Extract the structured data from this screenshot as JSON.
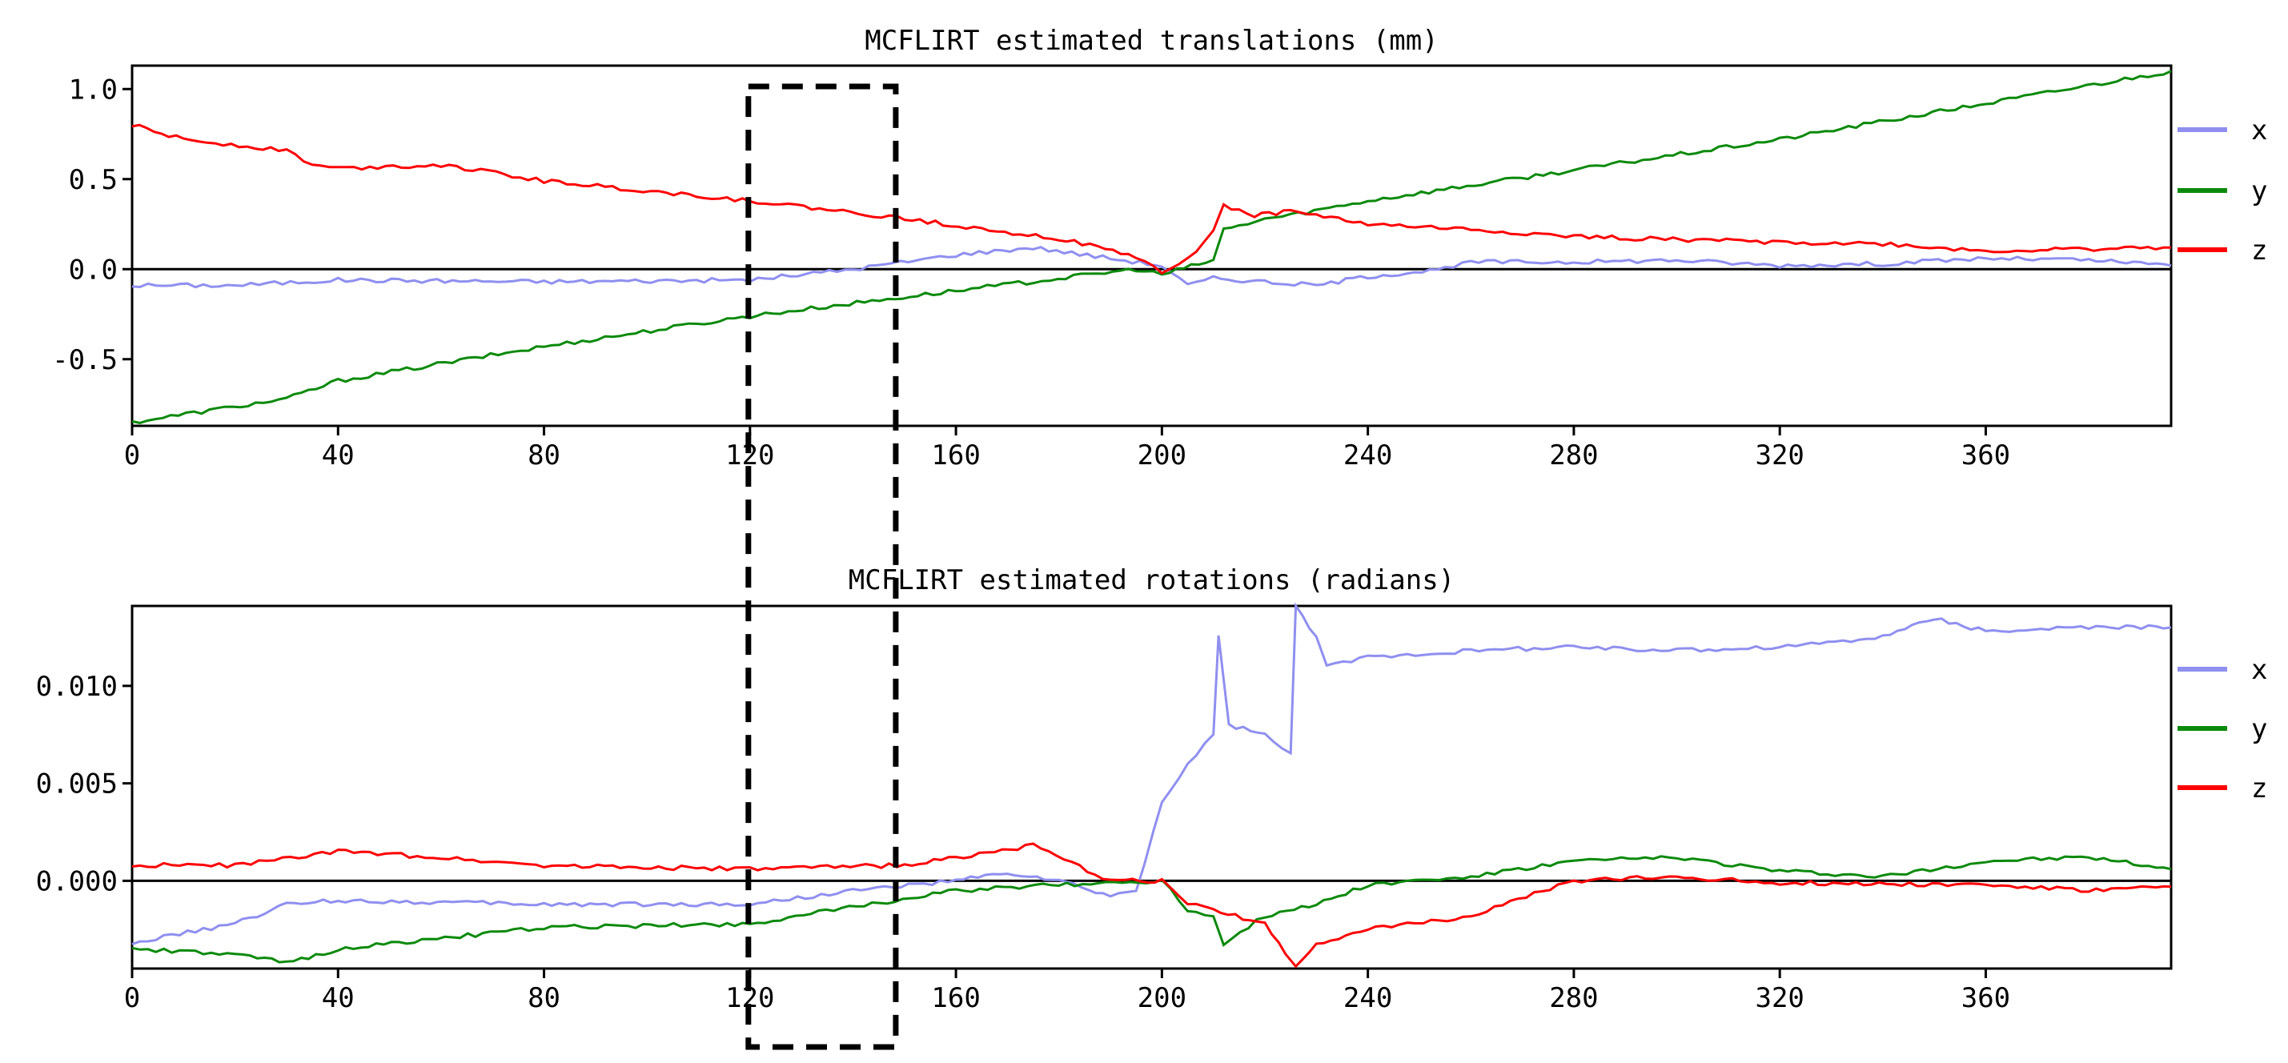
{
  "chart_data": [
    {
      "type": "line",
      "title": "MCFLIRT estimated translations (mm)",
      "xlabel": "",
      "ylabel": "",
      "xlim": [
        0,
        396
      ],
      "ylim": [
        -0.87,
        1.13
      ],
      "x_ticks": [
        0,
        40,
        80,
        120,
        160,
        200,
        240,
        280,
        320,
        360
      ],
      "y_ticks": [
        -0.5,
        0.0,
        0.5,
        1.0
      ],
      "y_tick_labels": [
        "-0.5",
        "0.0",
        "0.5",
        "1.0"
      ],
      "legend_position": "right",
      "series": [
        {
          "name": "x",
          "color": "#8f8ff0",
          "points": [
            [
              0,
              -0.09
            ],
            [
              20,
              -0.09
            ],
            [
              40,
              -0.06
            ],
            [
              80,
              -0.07
            ],
            [
              120,
              -0.06
            ],
            [
              140,
              0.0
            ],
            [
              160,
              0.08
            ],
            [
              175,
              0.12
            ],
            [
              190,
              0.06
            ],
            [
              200,
              0.02
            ],
            [
              205,
              -0.09
            ],
            [
              210,
              -0.05
            ],
            [
              220,
              -0.07
            ],
            [
              230,
              -0.09
            ],
            [
              240,
              -0.04
            ],
            [
              255,
              0.0
            ],
            [
              260,
              0.04
            ],
            [
              280,
              0.04
            ],
            [
              300,
              0.05
            ],
            [
              320,
              0.02
            ],
            [
              340,
              0.03
            ],
            [
              360,
              0.06
            ],
            [
              380,
              0.05
            ],
            [
              396,
              0.02
            ]
          ]
        },
        {
          "name": "y",
          "color": "#0b8a0b",
          "points": [
            [
              0,
              -0.85
            ],
            [
              30,
              -0.72
            ],
            [
              40,
              -0.62
            ],
            [
              80,
              -0.43
            ],
            [
              120,
              -0.26
            ],
            [
              160,
              -0.12
            ],
            [
              195,
              0.0
            ],
            [
              200,
              -0.03
            ],
            [
              210,
              0.05
            ],
            [
              212,
              0.22
            ],
            [
              215,
              0.24
            ],
            [
              220,
              0.28
            ],
            [
              225,
              0.3
            ],
            [
              240,
              0.38
            ],
            [
              280,
              0.55
            ],
            [
              320,
              0.72
            ],
            [
              360,
              0.92
            ],
            [
              396,
              1.1
            ]
          ]
        },
        {
          "name": "z",
          "color": "#ff0000",
          "points": [
            [
              0,
              0.8
            ],
            [
              10,
              0.72
            ],
            [
              30,
              0.66
            ],
            [
              35,
              0.58
            ],
            [
              40,
              0.56
            ],
            [
              60,
              0.58
            ],
            [
              80,
              0.49
            ],
            [
              120,
              0.38
            ],
            [
              150,
              0.28
            ],
            [
              180,
              0.17
            ],
            [
              195,
              0.07
            ],
            [
              200,
              -0.02
            ],
            [
              205,
              0.05
            ],
            [
              210,
              0.22
            ],
            [
              212,
              0.35
            ],
            [
              218,
              0.3
            ],
            [
              225,
              0.32
            ],
            [
              230,
              0.3
            ],
            [
              240,
              0.25
            ],
            [
              260,
              0.22
            ],
            [
              280,
              0.18
            ],
            [
              320,
              0.15
            ],
            [
              340,
              0.14
            ],
            [
              360,
              0.1
            ],
            [
              396,
              0.12
            ]
          ]
        }
      ]
    },
    {
      "type": "line",
      "title": "MCFLIRT estimated rotations (radians)",
      "xlabel": "",
      "ylabel": "",
      "xlim": [
        0,
        396
      ],
      "ylim": [
        -0.0045,
        0.0141
      ],
      "x_ticks": [
        0,
        40,
        80,
        120,
        160,
        200,
        240,
        280,
        320,
        360
      ],
      "y_ticks": [
        0.0,
        0.005,
        0.01
      ],
      "y_tick_labels": [
        "0.000",
        "0.005",
        "0.010"
      ],
      "legend_position": "right",
      "series": [
        {
          "name": "x",
          "color": "#8f8ff0",
          "points": [
            [
              0,
              -0.0032
            ],
            [
              20,
              -0.0022
            ],
            [
              30,
              -0.0012
            ],
            [
              40,
              -0.001
            ],
            [
              80,
              -0.0012
            ],
            [
              120,
              -0.0012
            ],
            [
              140,
              -0.0005
            ],
            [
              160,
              0.0
            ],
            [
              170,
              0.0004
            ],
            [
              180,
              0.0
            ],
            [
              190,
              -0.0008
            ],
            [
              195,
              -0.0005
            ],
            [
              200,
              0.004
            ],
            [
              205,
              0.006
            ],
            [
              210,
              0.0075
            ],
            [
              211,
              0.0125
            ],
            [
              213,
              0.008
            ],
            [
              220,
              0.0075
            ],
            [
              225,
              0.0065
            ],
            [
              226,
              0.014
            ],
            [
              230,
              0.0125
            ],
            [
              232,
              0.011
            ],
            [
              240,
              0.0115
            ],
            [
              260,
              0.0118
            ],
            [
              280,
              0.012
            ],
            [
              300,
              0.0118
            ],
            [
              320,
              0.012
            ],
            [
              340,
              0.0125
            ],
            [
              350,
              0.0135
            ],
            [
              360,
              0.0128
            ],
            [
              380,
              0.013
            ],
            [
              396,
              0.013
            ]
          ]
        },
        {
          "name": "y",
          "color": "#0b8a0b",
          "points": [
            [
              0,
              -0.0035
            ],
            [
              20,
              -0.0038
            ],
            [
              30,
              -0.0042
            ],
            [
              40,
              -0.0035
            ],
            [
              80,
              -0.0024
            ],
            [
              120,
              -0.0022
            ],
            [
              160,
              -0.0005
            ],
            [
              180,
              -0.0002
            ],
            [
              200,
              0.0
            ],
            [
              205,
              -0.0015
            ],
            [
              210,
              -0.0018
            ],
            [
              212,
              -0.0032
            ],
            [
              220,
              -0.0018
            ],
            [
              230,
              -0.0012
            ],
            [
              240,
              -0.0002
            ],
            [
              260,
              0.0002
            ],
            [
              280,
              0.001
            ],
            [
              300,
              0.0012
            ],
            [
              320,
              0.0005
            ],
            [
              340,
              0.0002
            ],
            [
              360,
              0.001
            ],
            [
              380,
              0.0012
            ],
            [
              396,
              0.0006
            ]
          ]
        },
        {
          "name": "z",
          "color": "#ff0000",
          "points": [
            [
              0,
              0.0008
            ],
            [
              20,
              0.0008
            ],
            [
              40,
              0.0015
            ],
            [
              60,
              0.0012
            ],
            [
              80,
              0.0008
            ],
            [
              120,
              0.0006
            ],
            [
              150,
              0.0008
            ],
            [
              160,
              0.0012
            ],
            [
              175,
              0.0018
            ],
            [
              190,
              0.0
            ],
            [
              200,
              0.0
            ],
            [
              205,
              -0.0012
            ],
            [
              210,
              -0.0015
            ],
            [
              220,
              -0.0022
            ],
            [
              224,
              -0.0038
            ],
            [
              226,
              -0.0045
            ],
            [
              230,
              -0.0032
            ],
            [
              240,
              -0.0025
            ],
            [
              260,
              -0.0018
            ],
            [
              280,
              0.0
            ],
            [
              300,
              0.0002
            ],
            [
              320,
              -0.0001
            ],
            [
              360,
              -0.0002
            ],
            [
              380,
              -0.0005
            ],
            [
              396,
              -0.0003
            ]
          ]
        }
      ]
    }
  ],
  "highlight_box": {
    "x_start": 120,
    "x_end": 148
  }
}
